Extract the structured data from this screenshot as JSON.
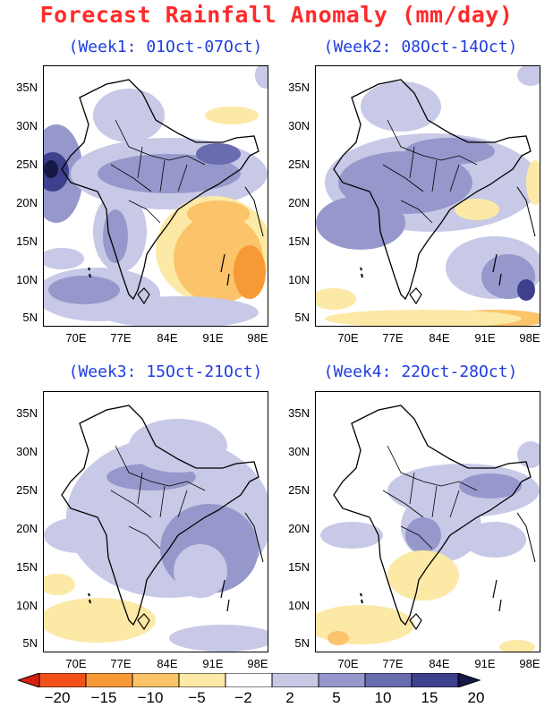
{
  "title": "Forecast Rainfall Anomaly (mm/day)",
  "panels": [
    {
      "title": "(Week1: 01Oct-07Oct)"
    },
    {
      "title": "(Week2: 08Oct-14Oct)"
    },
    {
      "title": "(Week3: 15Oct-21Oct)"
    },
    {
      "title": "(Week4: 22Oct-28Oct)"
    }
  ],
  "axes": {
    "lat_labels": [
      "35N",
      "30N",
      "25N",
      "20N",
      "15N",
      "10N",
      "5N"
    ],
    "lon_labels": [
      "70E",
      "77E",
      "84E",
      "91E",
      "98E"
    ]
  },
  "legend": {
    "labels": [
      "−20",
      "−15",
      "−10",
      "−5",
      "−2",
      "2",
      "5",
      "10",
      "15",
      "20"
    ],
    "colors": [
      "#d81e0c",
      "#f2521a",
      "#f79a36",
      "#fbc36a",
      "#fce9a6",
      "#ffffff",
      "#c7c9e6",
      "#9698cc",
      "#6a6cb0",
      "#3e408e",
      "#161845"
    ]
  }
}
